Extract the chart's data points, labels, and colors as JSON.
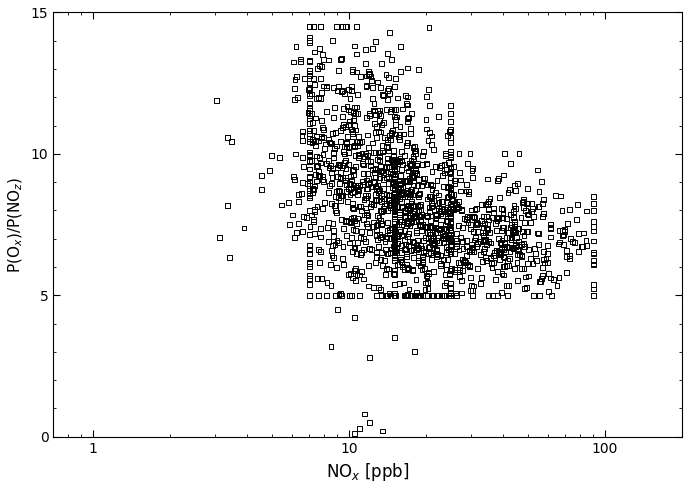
{
  "xlabel": "NO$_x$ [ppb]",
  "ylabel": "P(O$_x$)/P(NO$_z$)",
  "xlim": [
    0.7,
    200
  ],
  "ylim": [
    0,
    15
  ],
  "yticks": [
    0,
    5,
    10,
    15
  ],
  "xtick_labels": [
    "1",
    "10",
    "100"
  ],
  "marker": "s",
  "marker_size": 3.5,
  "marker_color": "black",
  "marker_facecolor": "none",
  "marker_linewidth": 0.7,
  "background_color": "white",
  "seed": 42
}
